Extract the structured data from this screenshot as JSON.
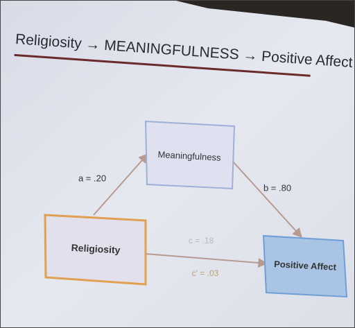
{
  "header": {
    "title": "Religiosity → MEANINGFULNESS → Positive Affect"
  },
  "nodes": [
    {
      "label": "Meaningfulness"
    },
    {
      "label": "Religiosity"
    },
    {
      "label": "Positive Affect"
    }
  ],
  "edges": [
    {
      "label": "a = .20"
    },
    {
      "label": "b = .80"
    },
    {
      "label": "c = .18"
    },
    {
      "label": "c' = .03"
    }
  ]
}
